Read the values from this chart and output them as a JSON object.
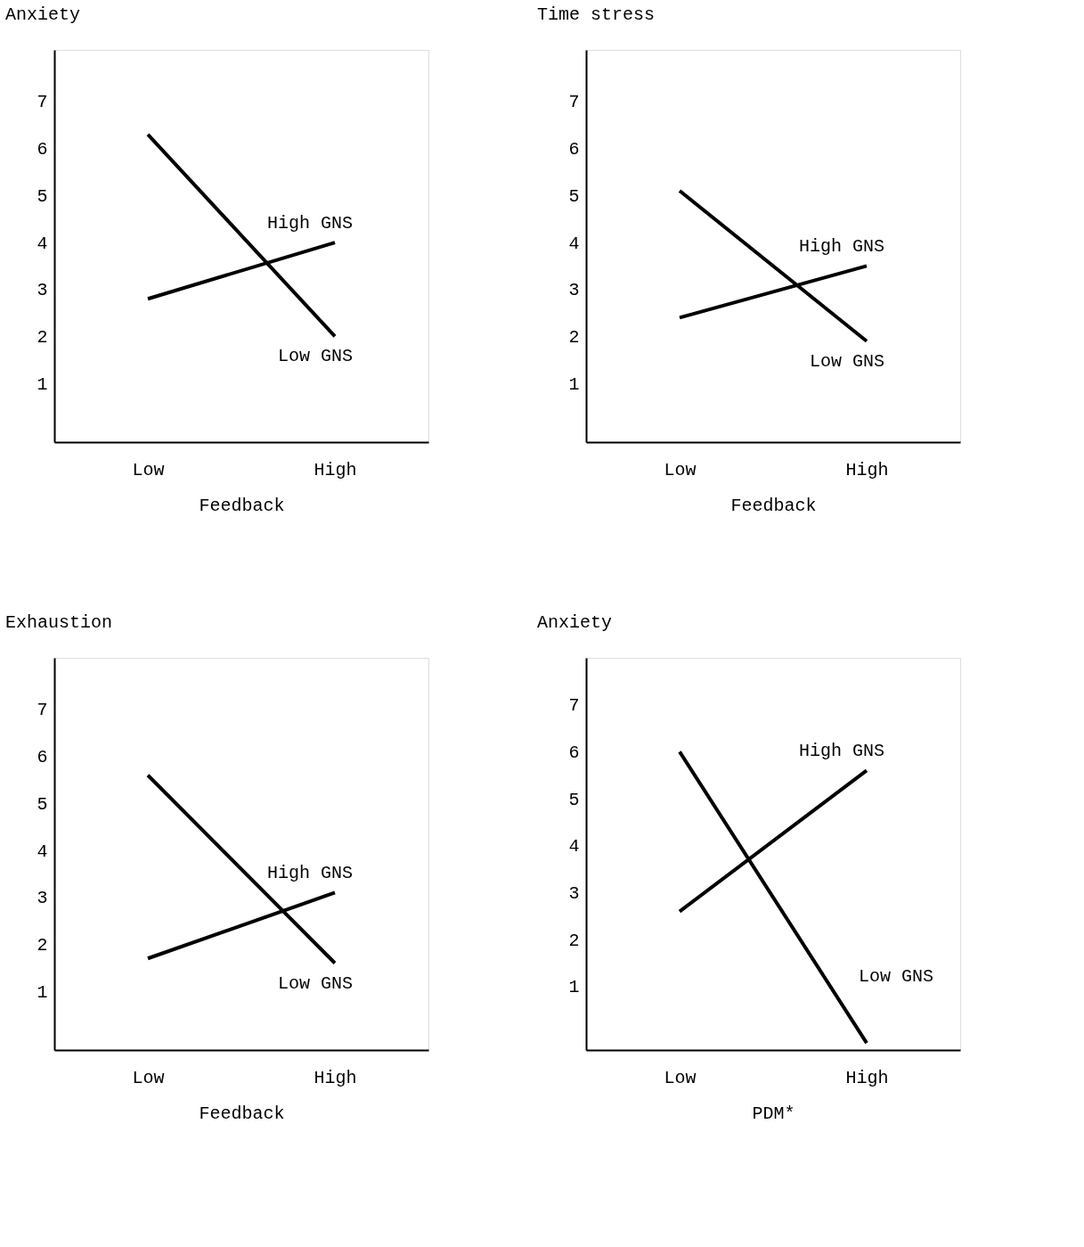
{
  "chart_data": [
    {
      "type": "line",
      "title": "Anxiety",
      "xlabel": "Feedback",
      "categories": [
        "Low",
        "High"
      ],
      "ylim": [
        -0.25,
        8.1
      ],
      "yticks": [
        1,
        2,
        3,
        4,
        5,
        6,
        7
      ],
      "grid": false,
      "marker": "none",
      "series": [
        {
          "name": "High GNS",
          "color": "#000000",
          "values": [
            2.8,
            4.0
          ]
        },
        {
          "name": "Low GNS",
          "color": "#000000",
          "values": [
            6.3,
            2.0
          ]
        }
      ]
    },
    {
      "type": "line",
      "title": "Time stress",
      "xlabel": "Feedback",
      "categories": [
        "Low",
        "High"
      ],
      "ylim": [
        -0.25,
        8.1
      ],
      "yticks": [
        1,
        2,
        3,
        4,
        5,
        6,
        7
      ],
      "grid": false,
      "marker": "none",
      "series": [
        {
          "name": "High GNS",
          "color": "#000000",
          "values": [
            2.4,
            3.5
          ]
        },
        {
          "name": "Low GNS",
          "color": "#000000",
          "values": [
            5.1,
            1.9
          ]
        }
      ]
    },
    {
      "type": "line",
      "title": "Exhaustion",
      "xlabel": "Feedback",
      "categories": [
        "Low",
        "High"
      ],
      "ylim": [
        -0.25,
        8.1
      ],
      "yticks": [
        1,
        2,
        3,
        4,
        5,
        6,
        7
      ],
      "grid": false,
      "marker": "none",
      "series": [
        {
          "name": "High GNS",
          "color": "#000000",
          "values": [
            1.7,
            3.1
          ]
        },
        {
          "name": "Low GNS",
          "color": "#000000",
          "values": [
            5.6,
            1.6
          ]
        }
      ]
    },
    {
      "type": "line",
      "title": "Anxiety",
      "xlabel": "PDM*",
      "categories": [
        "Low",
        "High"
      ],
      "ylim": [
        -0.35,
        8.0
      ],
      "yticks": [
        1,
        2,
        3,
        4,
        5,
        6,
        7
      ],
      "grid": false,
      "marker": "none",
      "series": [
        {
          "name": "High GNS",
          "color": "#000000",
          "values": [
            2.6,
            5.6
          ]
        },
        {
          "name": "Low GNS",
          "color": "#000000",
          "values": [
            6.0,
            -0.2
          ]
        }
      ]
    }
  ]
}
